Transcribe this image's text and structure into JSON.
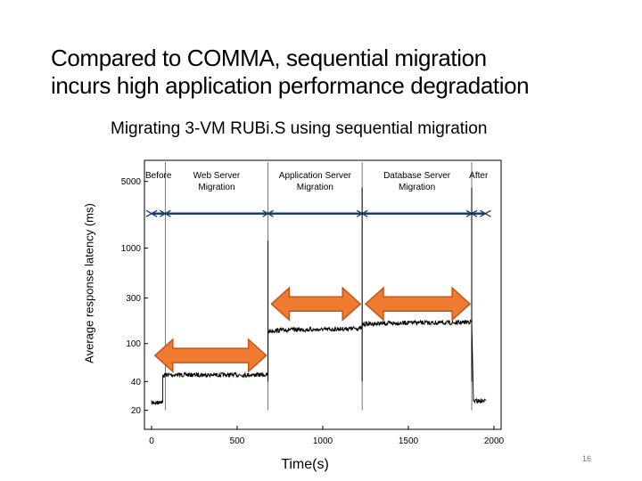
{
  "slide": {
    "title_line1": "Compared to COMMA, sequential migration",
    "title_line2": "incurs high application performance degradation",
    "page_number": "16"
  },
  "colors": {
    "arrow_fill": "#ee7b30",
    "arrow_stroke": "#c0561a",
    "series": "#000000",
    "phase_line": "#1f3c6e",
    "frame": "#000000"
  },
  "chart_data": {
    "type": "line",
    "title": "Migrating 3-VM RUBi.S using sequential migration",
    "xlabel": "Time(s)",
    "ylabel": "Average response latency (ms)",
    "xlim": [
      0,
      2000
    ],
    "ylim": [
      15,
      7000
    ],
    "yscale": "log",
    "x_ticks": [
      0,
      500,
      1000,
      1500,
      2000
    ],
    "y_ticks": [
      20,
      40,
      100,
      300,
      1000,
      5000
    ],
    "phases": [
      {
        "label_line1": "Before",
        "label_line2": "",
        "start": 0,
        "end": 80
      },
      {
        "label_line1": "Web Server",
        "label_line2": "Migration",
        "start": 80,
        "end": 680
      },
      {
        "label_line1": "Application Server",
        "label_line2": "Migration",
        "start": 680,
        "end": 1230
      },
      {
        "label_line1": "Database Server",
        "label_line2": "Migration",
        "start": 1230,
        "end": 1870
      },
      {
        "label_line1": "After",
        "label_line2": "",
        "start": 1870,
        "end": 1950
      }
    ],
    "phase_markers": [
      80,
      680,
      1230,
      1870
    ],
    "phase_line_latency": 2300,
    "series": [
      {
        "name": "Average response latency",
        "segments": [
          {
            "x": [
              0,
              40,
              50,
              65
            ],
            "y": [
              24,
              24,
              25,
              24
            ]
          },
          {
            "x": [
              65,
              80,
              150,
              300,
              500,
              680
            ],
            "y": [
              46,
              47,
              47,
              47,
              47,
              47
            ]
          },
          {
            "x": [
              680,
              800,
              1000,
              1230
            ],
            "y": [
              135,
              140,
              140,
              145
            ]
          },
          {
            "x": [
              1230,
              1500,
              1800,
              1870
            ],
            "y": [
              160,
              165,
              165,
              170
            ]
          },
          {
            "x": [
              1880,
              1900,
              1950
            ],
            "y": [
              25,
              25,
              25
            ]
          }
        ],
        "spikes": [
          {
            "x": 680,
            "y": 1200
          },
          {
            "x": 1230,
            "y": 4300
          },
          {
            "x": 1870,
            "y": 4300
          }
        ]
      }
    ],
    "annotations": [
      {
        "type": "double-arrow",
        "x_start": 20,
        "x_end": 670,
        "y": 75
      },
      {
        "type": "double-arrow",
        "x_start": 700,
        "x_end": 1220,
        "y": 260
      },
      {
        "type": "double-arrow",
        "x_start": 1250,
        "x_end": 1860,
        "y": 260
      }
    ]
  }
}
